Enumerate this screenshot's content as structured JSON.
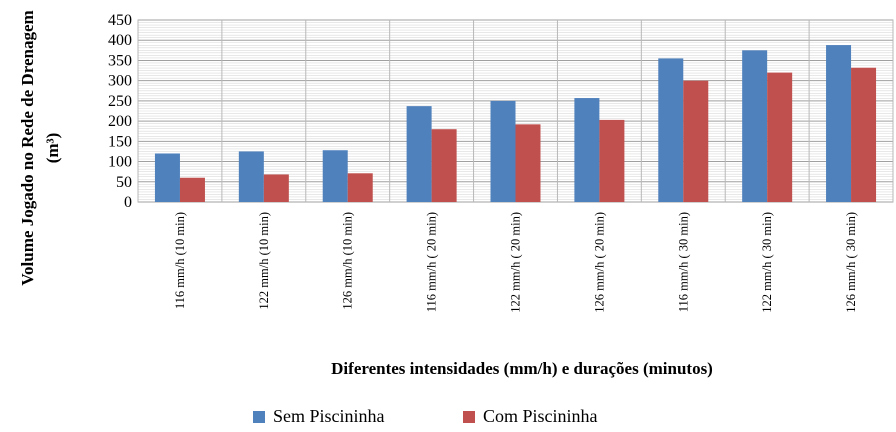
{
  "chart_data": {
    "type": "bar",
    "title": "",
    "xlabel": "Diferentes intensidades (mm/h) e durações (minutos)",
    "ylabel_line1": "Volume Jogado no Rede de Drenagem",
    "ylabel_line2": "(m³)",
    "ylim": [
      0,
      450
    ],
    "yticks": [
      0,
      50,
      100,
      150,
      200,
      250,
      300,
      350,
      400,
      450
    ],
    "ytick_labels": [
      "0",
      "50",
      "100",
      "150",
      "200",
      "250",
      "300",
      "350",
      "400",
      "450"
    ],
    "grid": true,
    "legend_position": "bottom",
    "categories": [
      "116 mm/h  (10 min)",
      "122 mm/h  (10 min)",
      "126 mm/h  (10 min)",
      "116 mm/h  ( 20 min)",
      "122 mm/h  ( 20 min)",
      "126 mm/h  ( 20 min)",
      "116 mm/h  ( 30 min)",
      "122 mm/h  ( 30 min)",
      "126 mm/h  ( 30 min)"
    ],
    "series": [
      {
        "name": "Sem Piscininha",
        "color": "#4F81BD",
        "values": [
          120,
          125,
          128,
          237,
          250,
          257,
          355,
          375,
          388
        ]
      },
      {
        "name": "Com Piscininha",
        "color": "#C0504D",
        "values": [
          60,
          68,
          71,
          180,
          192,
          203,
          300,
          320,
          332
        ]
      }
    ]
  }
}
